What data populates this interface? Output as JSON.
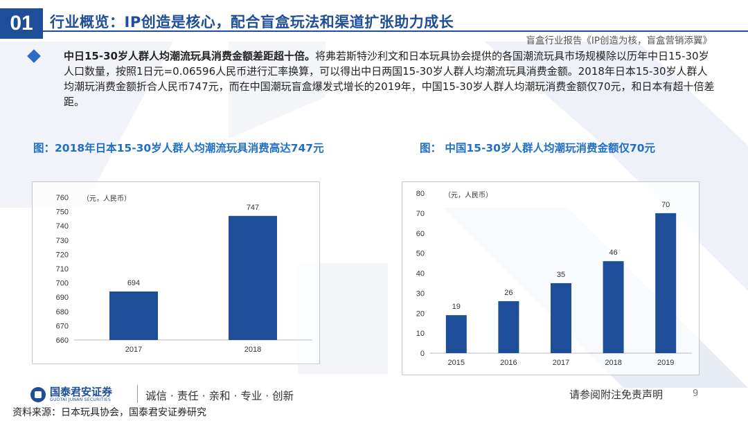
{
  "header": {
    "section_number": "01",
    "title": "行业概览：IP创造是核心，配合盲盒玩法和渠道扩张助力成长",
    "subtitle": "盲盒行业报告《IP创造为核，盲盒营销添翼》"
  },
  "summary": {
    "lead": "中日15-30岁人群人均潮流玩具消费金额差距超十倍。",
    "body": "将弗若斯特沙利文和日本玩具协会提供的各国潮流玩具市场规模除以历年中日15-30岁人口数量，按照1日元=0.06596人民币进行汇率换算，可以得出中日两国15-30岁人群人均潮流玩具消费金额。2018年日本15-30岁人群人均潮玩消费金额折合人民币747元，而在中国潮玩盲盒爆发式增长的2019年，中国15-30岁人群人均潮玩消费金额仅70元，和日本有超十倍差距。"
  },
  "chart_titles": {
    "left": "图：2018年日本15-30岁人群人均潮流玩具消费高达747元",
    "right": "图：  中国15-30岁人群人均潮玩消费金额仅70元"
  },
  "chart_data": [
    {
      "type": "bar",
      "title": "图：2018年日本15-30岁人群人均潮流玩具消费高达747元",
      "unit_label": "（元，人民币）",
      "categories": [
        "2017",
        "2018"
      ],
      "values": [
        694,
        747
      ],
      "ylim": [
        660,
        760
      ],
      "yticks": [
        660,
        670,
        680,
        690,
        700,
        710,
        720,
        730,
        740,
        750,
        760
      ],
      "color": "#1f4e98"
    },
    {
      "type": "bar",
      "title": "图：  中国15-30岁人群人均潮玩消费金额仅70元",
      "unit_label": "（元，人民币）",
      "categories": [
        "2015",
        "2016",
        "2017",
        "2018",
        "2019"
      ],
      "values": [
        19,
        26,
        35,
        46,
        70
      ],
      "ylim": [
        0,
        80
      ],
      "yticks": [
        0,
        10,
        20,
        30,
        40,
        50,
        60,
        70,
        80
      ],
      "color": "#1f4e98"
    }
  ],
  "footer": {
    "logo_name": "国泰君安证券",
    "logo_sub": "GUOTAI JUNAN SECURITIES",
    "motto": "诚信 · 责任 · 亲和 · 专业 · 创新",
    "disclaimer": "请参阅附注免责声明",
    "page_number": "9",
    "source": "资料来源：日本玩具协会，国泰君安证券研究"
  },
  "colors": {
    "brand": "#1f4e98",
    "accent": "#1f6fc7"
  }
}
